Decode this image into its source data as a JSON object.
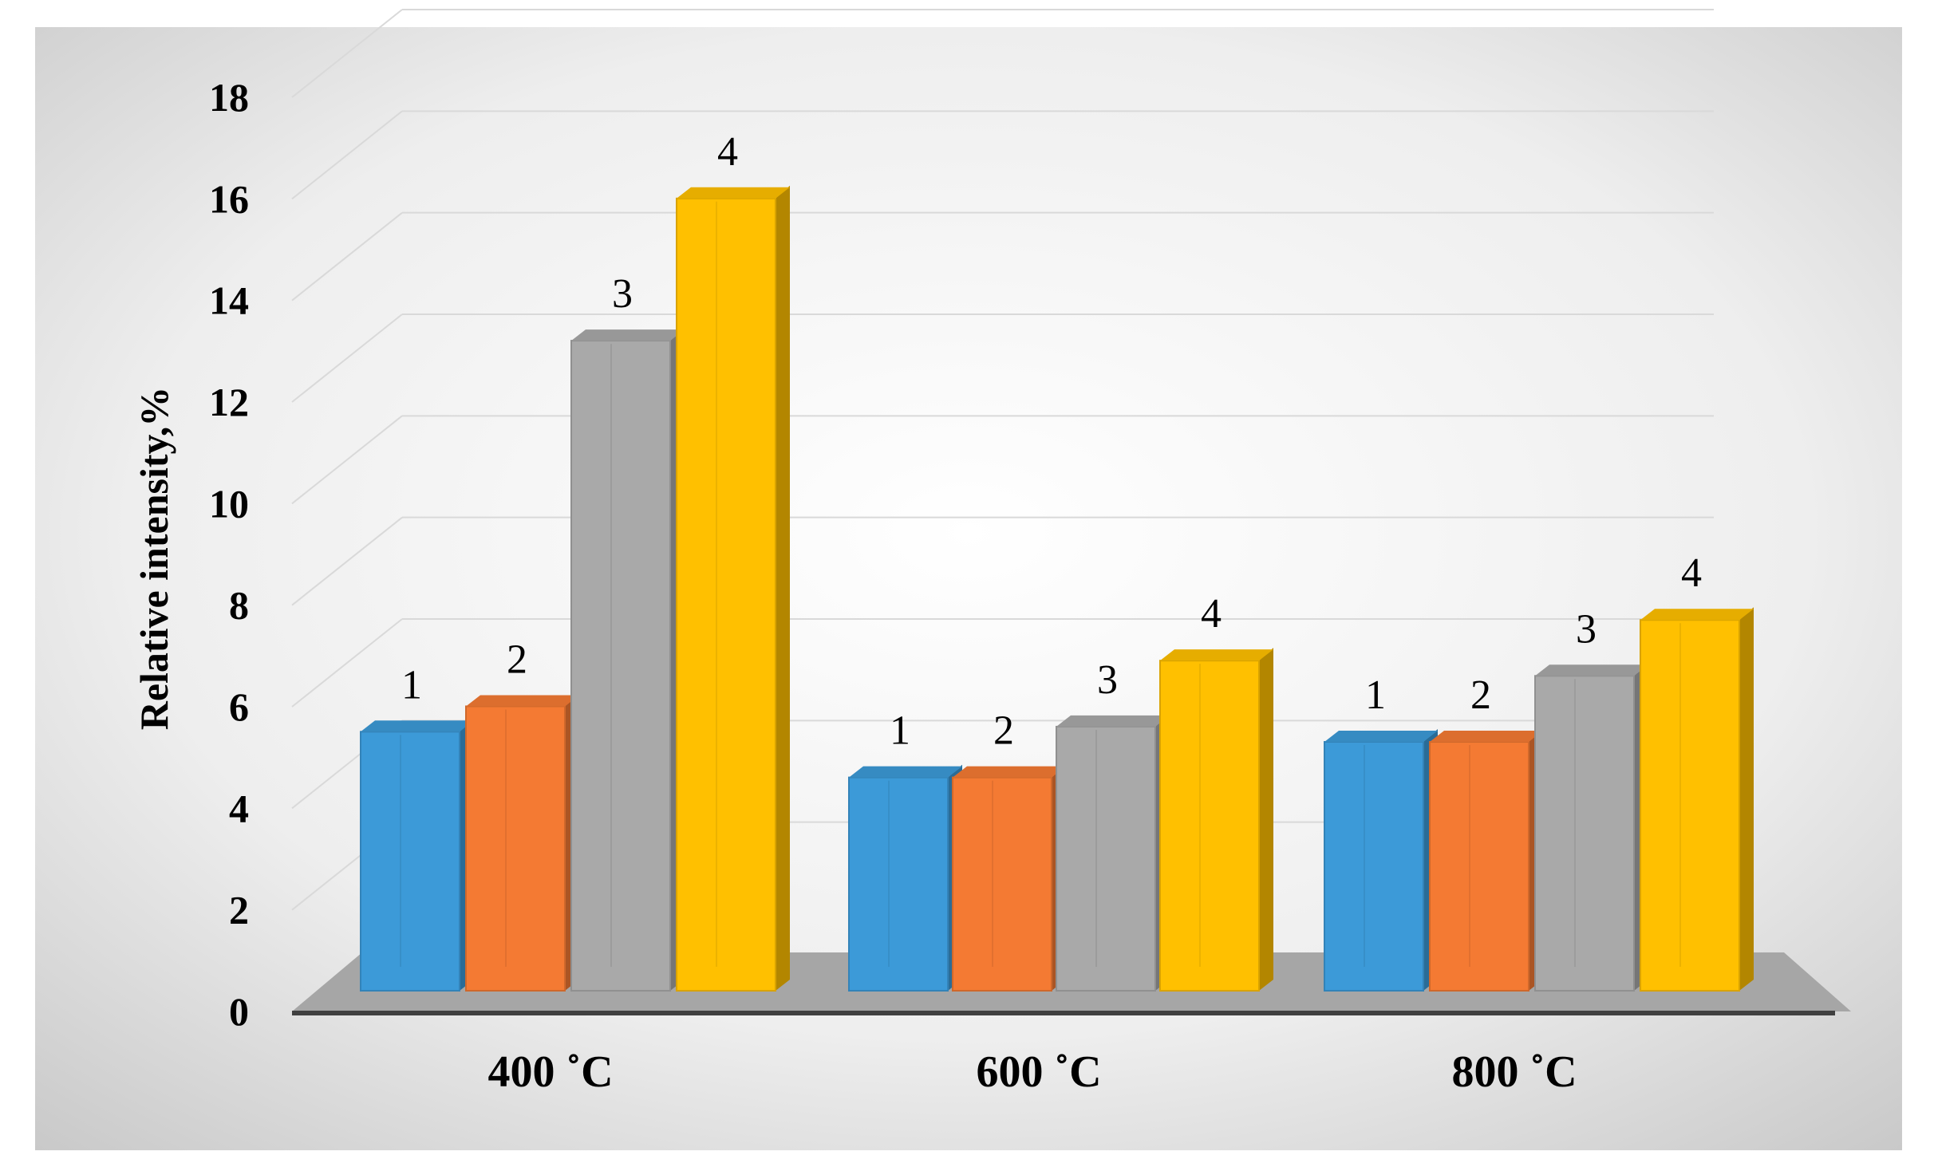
{
  "chart_data": {
    "type": "bar",
    "title": "",
    "xlabel": "",
    "ylabel": "Relative intensity,%",
    "categories": [
      "400 ˚C",
      "600 ˚C",
      "800 ˚C"
    ],
    "ylim": [
      0,
      18
    ],
    "yticks": [
      0,
      2,
      4,
      6,
      8,
      10,
      12,
      14,
      16,
      18
    ],
    "grid": true,
    "legend": "none",
    "style": "3d-clustered-column",
    "series": [
      {
        "label": "1",
        "color": "#3c9ad8",
        "values": [
          5.1,
          4.2,
          4.9
        ]
      },
      {
        "label": "2",
        "color": "#f47a33",
        "values": [
          5.6,
          4.2,
          4.9
        ]
      },
      {
        "label": "3",
        "color": "#a9a9a9",
        "values": [
          12.8,
          5.2,
          6.2
        ]
      },
      {
        "label": "4",
        "color": "#ffc000",
        "values": [
          15.6,
          6.5,
          7.3
        ]
      }
    ]
  }
}
